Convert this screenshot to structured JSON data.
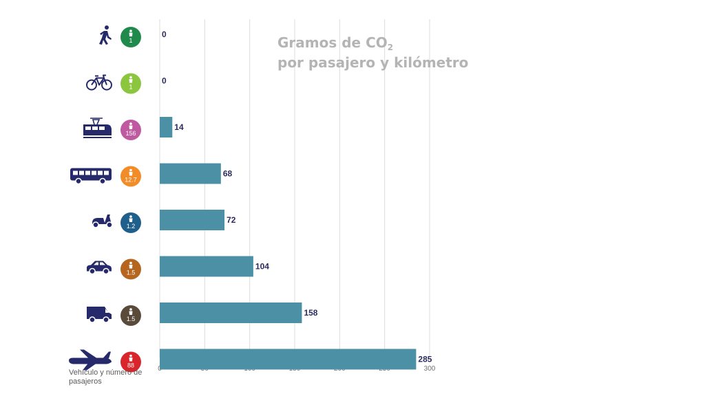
{
  "title_line1": "Gramos de CO",
  "title_sub": "2",
  "title_line2": "por pasajero y kilómetro",
  "footnote": "Vehículo y número de pasajeros",
  "colors": {
    "bar": "#4b90a5",
    "value_text": "#2b2b5e",
    "icon": "#262a6a",
    "grid": "#dcdcdc",
    "tick_text": "#707070",
    "title": "#b4b4b4"
  },
  "chart_data": {
    "type": "bar",
    "orientation": "horizontal",
    "title": "Gramos de CO2 por pasajero y kilómetro",
    "ylabel": "Vehículo y número de pasajeros",
    "xlim": [
      0,
      300
    ],
    "xticks": [
      0,
      50,
      100,
      150,
      200,
      250,
      300
    ],
    "grid": true,
    "categories": [
      {
        "icon": "pedestrian-icon",
        "passengers": "1",
        "passenger_color": "#1f8a4c",
        "value": 0
      },
      {
        "icon": "bicycle-icon",
        "passengers": "1",
        "passenger_color": "#8cc63f",
        "value": 0
      },
      {
        "icon": "tram-icon",
        "passengers": "156",
        "passenger_color": "#c05aa0",
        "value": 14
      },
      {
        "icon": "bus-icon",
        "passengers": "12.7",
        "passenger_color": "#f28c28",
        "value": 68
      },
      {
        "icon": "scooter-icon",
        "passengers": "1.2",
        "passenger_color": "#1e5f8c",
        "value": 72
      },
      {
        "icon": "car-icon",
        "passengers": "1.5",
        "passenger_color": "#b5651d",
        "value": 104
      },
      {
        "icon": "van-icon",
        "passengers": "1.5",
        "passenger_color": "#5a4a3a",
        "value": 158
      },
      {
        "icon": "airplane-icon",
        "passengers": "88",
        "passenger_color": "#d9262c",
        "value": 285
      }
    ]
  }
}
